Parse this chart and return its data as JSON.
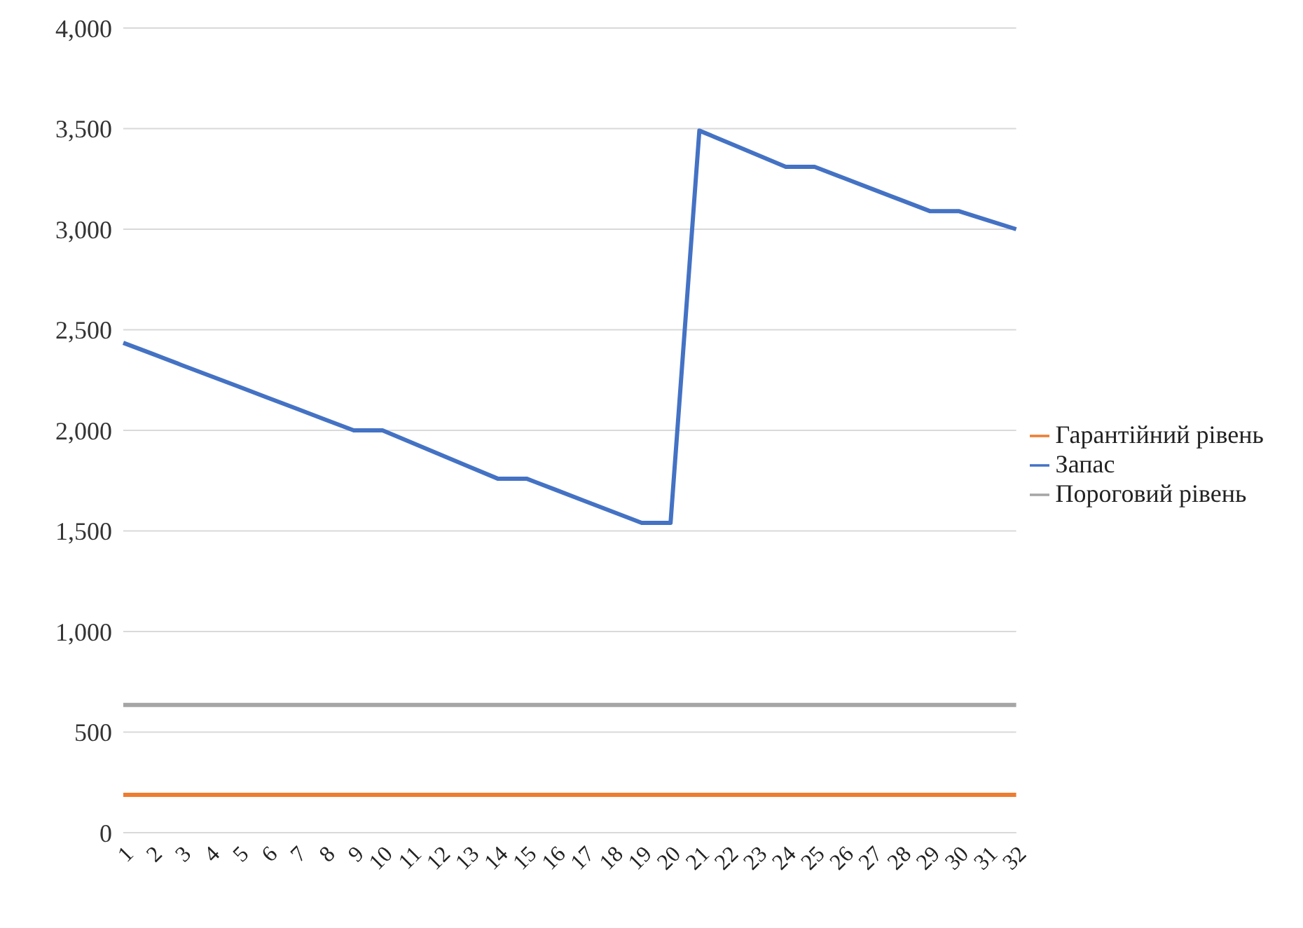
{
  "chart_data": {
    "type": "line",
    "categories": [
      "1",
      "2",
      "3",
      "4",
      "5",
      "6",
      "7",
      "8",
      "9",
      "10",
      "11",
      "12",
      "13",
      "14",
      "15",
      "16",
      "17",
      "18",
      "19",
      "20",
      "21",
      "22",
      "23",
      "24",
      "25",
      "26",
      "27",
      "28",
      "29",
      "30",
      "31",
      "32"
    ],
    "series": [
      {
        "name": "Запас",
        "color": "#4472c4",
        "values": [
          2435,
          2381,
          2326,
          2272,
          2218,
          2163,
          2109,
          2054,
          2000,
          2000,
          1940,
          1880,
          1820,
          1760,
          1760,
          1705,
          1650,
          1595,
          1540,
          1540,
          3490,
          3430,
          3370,
          3310,
          3310,
          3255,
          3200,
          3145,
          3090,
          3090,
          3045,
          3000
        ]
      },
      {
        "name": "Гарантійний рівень",
        "color": "#ed7d31",
        "values": [
          188,
          188,
          188,
          188,
          188,
          188,
          188,
          188,
          188,
          188,
          188,
          188,
          188,
          188,
          188,
          188,
          188,
          188,
          188,
          188,
          188,
          188,
          188,
          188,
          188,
          188,
          188,
          188,
          188,
          188,
          188,
          188
        ]
      },
      {
        "name": "Пороговий рівень",
        "color": "#a5a5a5",
        "values": [
          635,
          635,
          635,
          635,
          635,
          635,
          635,
          635,
          635,
          635,
          635,
          635,
          635,
          635,
          635,
          635,
          635,
          635,
          635,
          635,
          635,
          635,
          635,
          635,
          635,
          635,
          635,
          635,
          635,
          635,
          635,
          635
        ]
      }
    ],
    "ylim": [
      0,
      4000
    ],
    "yticks": [
      {
        "value": 0,
        "label": "0"
      },
      {
        "value": 500,
        "label": "500"
      },
      {
        "value": 1000,
        "label": "1,000"
      },
      {
        "value": 1500,
        "label": "1,500"
      },
      {
        "value": 2000,
        "label": "2,000"
      },
      {
        "value": 2500,
        "label": "2,500"
      },
      {
        "value": 3000,
        "label": "3,000"
      },
      {
        "value": 3500,
        "label": "3,500"
      },
      {
        "value": 4000,
        "label": "4,000"
      }
    ],
    "grid": "y",
    "legend": "right",
    "marker": "none",
    "line_style": "solid"
  }
}
